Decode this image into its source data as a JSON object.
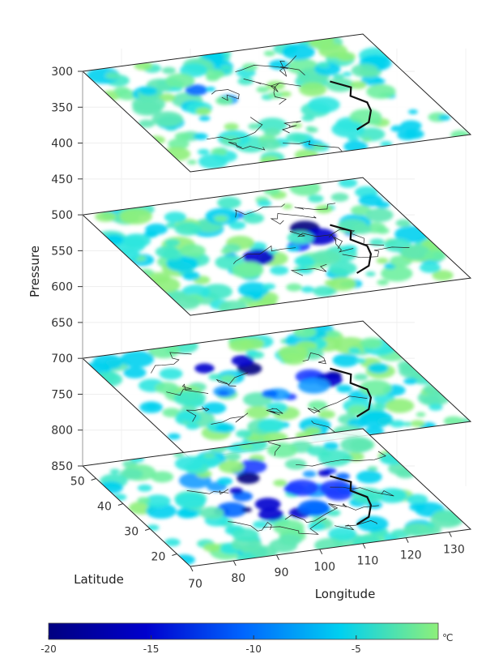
{
  "chart_data": {
    "type": "heatmap",
    "description_free": true,
    "zlabel": "Pressure",
    "ylabel": "Latitude",
    "xlabel": "Longitude",
    "z_ticks": [
      300,
      350,
      400,
      450,
      500,
      550,
      600,
      650,
      700,
      750,
      800,
      850
    ],
    "zlim": [
      300,
      850
    ],
    "z_direction": "reversed",
    "y_ticks": [
      20,
      30,
      40,
      50
    ],
    "ylim": [
      15,
      55
    ],
    "x_ticks": [
      70,
      80,
      90,
      100,
      110,
      120,
      130
    ],
    "xlim": [
      70,
      135
    ],
    "layers": [
      300,
      500,
      700,
      850
    ],
    "colorbar": {
      "ticks": [
        -20,
        -15,
        -10,
        -5
      ],
      "range": [
        -20,
        -1
      ],
      "unit": "℃",
      "colors": [
        "#000080",
        "#0000cd",
        "#0066ff",
        "#00d0f0",
        "#8ef07a"
      ]
    },
    "grid": true
  }
}
